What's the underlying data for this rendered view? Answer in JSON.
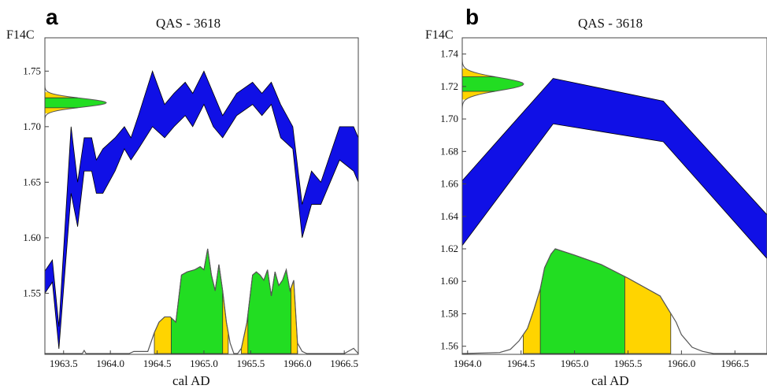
{
  "colors": {
    "calibration_curve": "#1010e6",
    "range_68": "#22dd22",
    "range_95": "#ffd400",
    "outline": "#555555",
    "frame": "#444444"
  },
  "chart_data": [
    {
      "type": "area",
      "panel_label": "a",
      "title": "QAS - 3618",
      "xlabel": "cal AD",
      "ylabel": "F14C",
      "xlim": [
        1963.3,
        1966.65
      ],
      "ylim": [
        1.495,
        1.78
      ],
      "x_ticks": [
        "1963.5",
        "1964.0",
        "1964.5",
        "1965.0",
        "1965.5",
        "1966.0",
        "1966.5"
      ],
      "y_ticks": [
        "1.55",
        "1.60",
        "1.65",
        "1.70",
        "1.75"
      ],
      "calibration_band": [
        [
          1963.3,
          1.55,
          1.57
        ],
        [
          1963.38,
          1.56,
          1.58
        ],
        [
          1963.45,
          1.5,
          1.52
        ],
        [
          1963.58,
          1.64,
          1.7
        ],
        [
          1963.65,
          1.61,
          1.65
        ],
        [
          1963.72,
          1.66,
          1.69
        ],
        [
          1963.8,
          1.66,
          1.69
        ],
        [
          1963.85,
          1.64,
          1.67
        ],
        [
          1963.92,
          1.64,
          1.68
        ],
        [
          1964.05,
          1.66,
          1.69
        ],
        [
          1964.15,
          1.68,
          1.7
        ],
        [
          1964.22,
          1.67,
          1.69
        ],
        [
          1964.3,
          1.68,
          1.71
        ],
        [
          1964.45,
          1.7,
          1.75
        ],
        [
          1964.58,
          1.69,
          1.72
        ],
        [
          1964.68,
          1.7,
          1.73
        ],
        [
          1964.8,
          1.71,
          1.74
        ],
        [
          1964.88,
          1.7,
          1.73
        ],
        [
          1965.0,
          1.72,
          1.75
        ],
        [
          1965.1,
          1.7,
          1.73
        ],
        [
          1965.2,
          1.69,
          1.71
        ],
        [
          1965.35,
          1.71,
          1.73
        ],
        [
          1965.52,
          1.72,
          1.74
        ],
        [
          1965.62,
          1.71,
          1.73
        ],
        [
          1965.72,
          1.72,
          1.74
        ],
        [
          1965.82,
          1.69,
          1.72
        ],
        [
          1965.95,
          1.68,
          1.7
        ],
        [
          1966.05,
          1.6,
          1.63
        ],
        [
          1966.15,
          1.63,
          1.66
        ],
        [
          1966.25,
          1.63,
          1.65
        ],
        [
          1966.45,
          1.67,
          1.7
        ],
        [
          1966.6,
          1.66,
          1.7
        ],
        [
          1966.65,
          1.65,
          1.69
        ]
      ],
      "measurement": {
        "mean": 1.7215,
        "sigma": 0.004,
        "range_68": [
          1.717,
          1.726
        ],
        "range_95": [
          1.712,
          1.731
        ]
      },
      "probability": {
        "x": [
          1963.3,
          1963.7,
          1963.72,
          1963.74,
          1964.2,
          1964.25,
          1964.4,
          1964.47,
          1964.52,
          1964.58,
          1964.64,
          1964.7,
          1964.76,
          1964.82,
          1964.9,
          1964.96,
          1965.0,
          1965.04,
          1965.08,
          1965.12,
          1965.16,
          1965.2,
          1965.24,
          1965.28,
          1965.32,
          1965.36,
          1965.4,
          1965.46,
          1965.52,
          1965.56,
          1965.6,
          1965.64,
          1965.68,
          1965.72,
          1965.76,
          1965.8,
          1965.84,
          1965.88,
          1965.92,
          1965.96,
          1966.0,
          1966.05,
          1966.1,
          1966.5,
          1966.6,
          1966.65
        ],
        "p": [
          0.0,
          0.0,
          0.03,
          0.0,
          0.0,
          0.02,
          0.02,
          0.2,
          0.3,
          0.35,
          0.35,
          0.3,
          0.75,
          0.78,
          0.8,
          0.83,
          0.8,
          1.0,
          0.75,
          0.6,
          0.85,
          0.6,
          0.3,
          0.1,
          0.0,
          0.0,
          0.05,
          0.3,
          0.75,
          0.78,
          0.75,
          0.7,
          0.8,
          0.55,
          0.78,
          0.65,
          0.7,
          0.8,
          0.6,
          0.7,
          0.1,
          0.02,
          0.0,
          0.0,
          0.05,
          0.0
        ],
        "ranges_68": [
          [
            1964.65,
            1965.2
          ],
          [
            1965.47,
            1965.93
          ]
        ],
        "ranges_95": [
          [
            1964.47,
            1965.26
          ],
          [
            1965.4,
            1966.0
          ]
        ]
      }
    },
    {
      "type": "area",
      "panel_label": "b",
      "title": "QAS - 3618",
      "xlabel": "cal AD",
      "ylabel": "F14C",
      "xlim": [
        1963.95,
        1966.8
      ],
      "ylim": [
        1.555,
        1.75
      ],
      "x_ticks": [
        "1964.0",
        "1964.5",
        "1965.0",
        "1965.5",
        "1966.0",
        "1966.5"
      ],
      "y_ticks": [
        "1.56",
        "1.58",
        "1.60",
        "1.62",
        "1.64",
        "1.66",
        "1.68",
        "1.70",
        "1.72",
        "1.74"
      ],
      "calibration_band": [
        [
          1963.95,
          1.622,
          1.662
        ],
        [
          1964.8,
          1.697,
          1.725
        ],
        [
          1965.83,
          1.686,
          1.711
        ],
        [
          1966.8,
          1.614,
          1.641
        ]
      ],
      "measurement": {
        "mean": 1.7215,
        "sigma": 0.004,
        "range_68": [
          1.717,
          1.726
        ],
        "range_95": [
          1.712,
          1.731
        ]
      },
      "probability": {
        "x": [
          1963.95,
          1964.3,
          1964.4,
          1964.48,
          1964.56,
          1964.62,
          1964.68,
          1964.72,
          1964.78,
          1964.82,
          1965.0,
          1965.25,
          1965.5,
          1965.8,
          1965.95,
          1966.0,
          1966.1,
          1966.2,
          1966.3,
          1966.5,
          1966.8
        ],
        "p": [
          0.0,
          0.01,
          0.04,
          0.12,
          0.24,
          0.42,
          0.62,
          0.82,
          0.95,
          1.0,
          0.94,
          0.85,
          0.72,
          0.55,
          0.3,
          0.18,
          0.06,
          0.02,
          0.0,
          0.0,
          0.0
        ],
        "ranges_68": [
          [
            1964.68,
            1965.47
          ]
        ],
        "ranges_95": [
          [
            1964.52,
            1965.9
          ]
        ]
      }
    }
  ]
}
